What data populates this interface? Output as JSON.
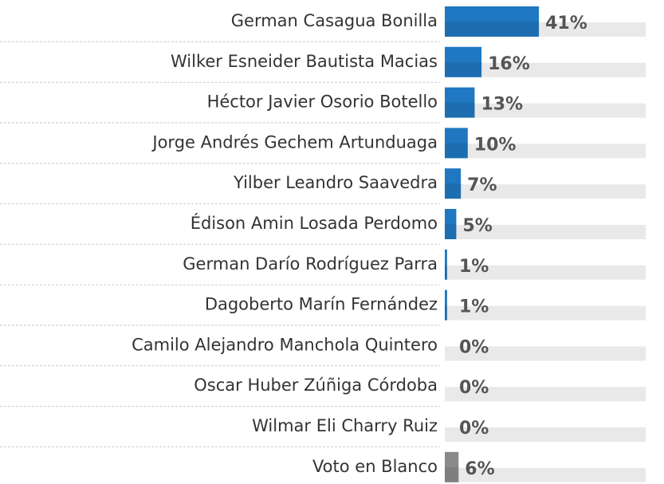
{
  "chart_data": {
    "type": "bar",
    "orientation": "horizontal",
    "categories": [
      "German Casagua Bonilla",
      "Wilker Esneider Bautista Macias",
      "Héctor Javier Osorio Botello",
      "Jorge Andrés Gechem Artunduaga",
      "Yilber Leandro Saavedra",
      "Édison Amin Losada Perdomo",
      "German Darío Rodríguez Parra",
      "Dagoberto Marín Fernández",
      "Camilo Alejandro Manchola Quintero",
      "Oscar Huber Zúñiga Córdoba",
      "Wilmar Eli Charry Ruiz",
      "Voto en Blanco"
    ],
    "values": [
      41,
      16,
      13,
      10,
      7,
      5,
      1,
      1,
      0,
      0,
      0,
      6
    ],
    "value_labels": [
      "41%",
      "16%",
      "13%",
      "10%",
      "7%",
      "5%",
      "1%",
      "1%",
      "0%",
      "0%",
      "0%",
      "6%"
    ],
    "colors": [
      "#1f78c1",
      "#1f78c1",
      "#1f78c1",
      "#1f78c1",
      "#1f78c1",
      "#1f78c1",
      "#1f78c1",
      "#1f78c1",
      "#1f78c1",
      "#1f78c1",
      "#1f78c1",
      "#8a8a8a"
    ]
  }
}
